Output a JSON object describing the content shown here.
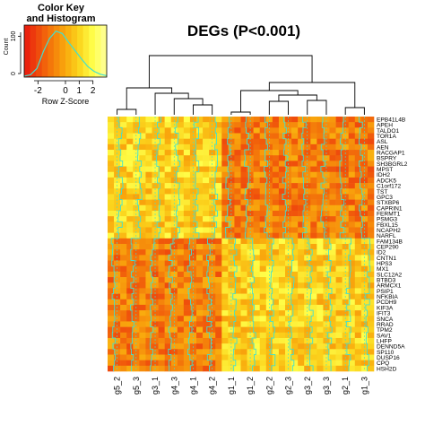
{
  "chart_data": {
    "type": "heatmap",
    "title": "DEGs (P<0.001)",
    "color_key": {
      "title_line1": "Color Key",
      "title_line2": "and Histogram",
      "xlabel": "Row Z-Score",
      "ylabel": "Count",
      "x_ticks": [
        "-2",
        "0",
        "1",
        "2"
      ],
      "y_ticks": [
        "0",
        "100"
      ],
      "range": [
        -3,
        3
      ],
      "colors": [
        "#e8170f",
        "#ef4a0c",
        "#f47a0a",
        "#f9a90d",
        "#fbd51d",
        "#ffff4a",
        "#ffff9e"
      ],
      "histogram_trace": [
        0.02,
        0.05,
        0.18,
        0.52,
        0.8,
        0.95,
        0.9,
        0.72,
        0.55,
        0.38,
        0.22,
        0.12,
        0.06,
        0.03
      ]
    },
    "columns": [
      "g5_2",
      "g5_3",
      "g3_1",
      "g4_3",
      "g4_1",
      "g4_2",
      "g1_1",
      "g1_2",
      "g2_2",
      "g2_3",
      "g3_2",
      "g3_3",
      "g2_1",
      "g1_3"
    ],
    "rows": [
      "EPB41L4B",
      "APEH",
      "TALDO1",
      "TOR1A",
      "ASL",
      "AEN",
      "RACGAP1",
      "BSPRY",
      "SH3BGRL2",
      "MPST",
      "IDH2",
      "ADCK5",
      "C1orf172",
      "TST",
      "GPC3",
      "STXBP6",
      "CAPRIN1",
      "FERMT1",
      "PSMG3",
      "FBXL15",
      "NCAPH2",
      "NARFL",
      "FAM134B",
      "CEP290",
      "ID2",
      "CNTN1",
      "HPS3",
      "MX1",
      "SLC12A2",
      "BTBD3",
      "ARMCX1",
      "PSIP1",
      "NFKBIA",
      "PCDH9",
      "KIF3A",
      "IFIT3",
      "SNCA",
      "RRAD",
      "TPM2",
      "SAV1",
      "LHFP",
      "DENND5A",
      "SP110",
      "DUSP16",
      "CPQ",
      "HSH2D"
    ],
    "row_groups": [
      {
        "rows": "EPB41L4B-NARFL",
        "left_cluster_z": [
          1.2,
          0.8,
          1.0,
          0.9,
          1.1,
          0.7
        ],
        "right_cluster_z": [
          -0.8,
          -1.0,
          -0.9,
          -0.7,
          -0.9,
          -1.0,
          -0.8,
          -0.6
        ]
      },
      {
        "rows": "FAM134B-HSH2D",
        "left_cluster_z": [
          -0.8,
          -1.0,
          -0.9,
          -0.7,
          -0.9,
          -1.0
        ],
        "right_cluster_z": [
          1.0,
          0.9,
          0.8,
          1.1,
          0.7,
          1.2,
          0.9,
          1.0
        ]
      }
    ],
    "dendrogram": "two main column clusters: {g5_2, g5_3, g3_1, g4_3, g4_1, g4_2} and {g1_1, g1_2, g2_2, g2_3, g3_2, g3_3, g2_1, g1_3}",
    "trace_color": "#40e0d0",
    "scale": "row Z-score"
  }
}
